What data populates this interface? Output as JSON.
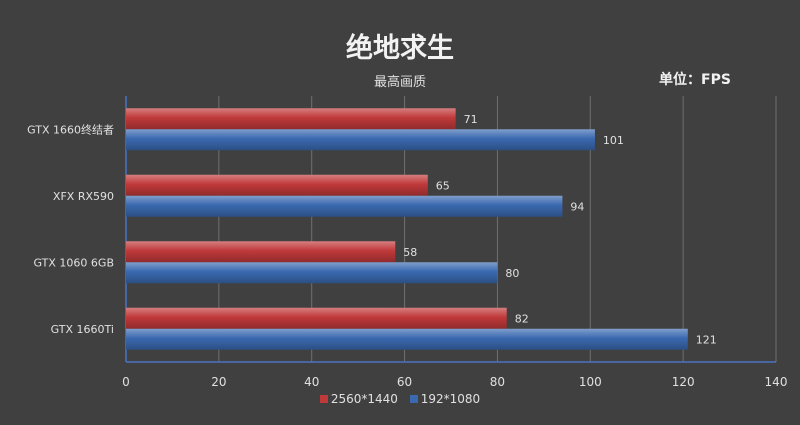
{
  "title": "绝地求生",
  "subtitle": "最高画质",
  "unit_label": "单位：FPS",
  "colors": {
    "series_1": "#c0393a",
    "series_2": "#3a69b0",
    "grid": "#707070",
    "axis": "#4a72c4",
    "text": "#e0e0e0"
  },
  "chart_data": {
    "type": "bar",
    "orientation": "horizontal",
    "title": "绝地求生",
    "subtitle": "最高画质",
    "categories": [
      "GTX 1660终结者",
      "XFX RX590",
      "GTX 1060 6GB",
      "GTX 1660Ti"
    ],
    "series": [
      {
        "name": "2560*1440",
        "values": [
          71,
          65,
          58,
          82
        ]
      },
      {
        "name": "192*1080",
        "values": [
          101,
          94,
          80,
          121
        ]
      }
    ],
    "xlim": [
      0,
      140
    ],
    "xticks": [
      0,
      20,
      40,
      60,
      80,
      100,
      120,
      140
    ],
    "grid": true,
    "legend_position": "bottom",
    "data_labels": true
  }
}
